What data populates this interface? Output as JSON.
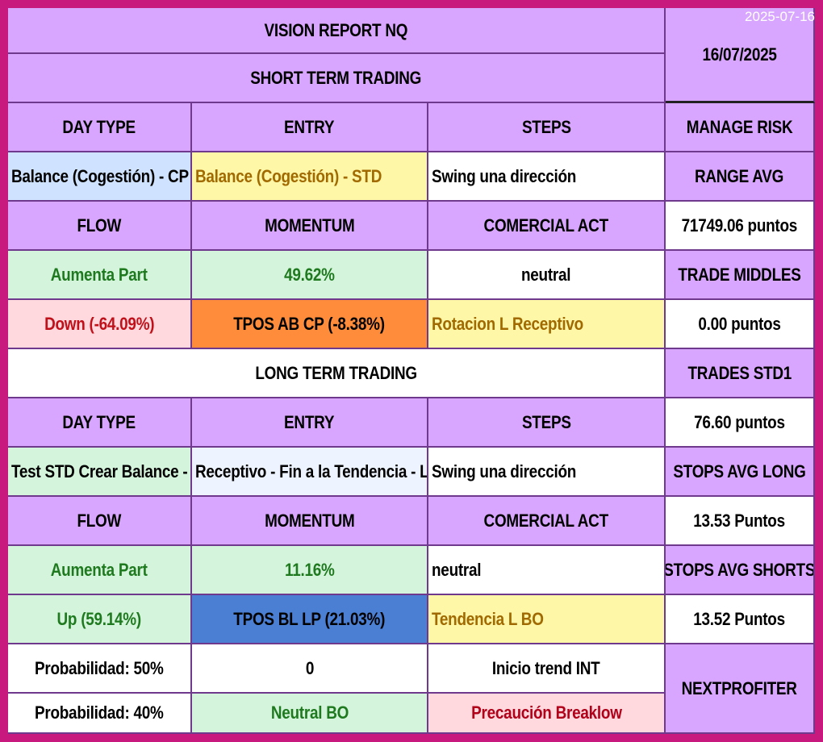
{
  "date_stamp": "2025-07-16",
  "header": {
    "title": "VISION REPORT NQ",
    "subtitle": "SHORT TERM TRADING",
    "date": "16/07/2025"
  },
  "short_term": {
    "headers": [
      "DAY TYPE",
      "ENTRY",
      "STEPS"
    ],
    "day_type": "Balance (Cogestión) - CP",
    "entry": "Balance (Cogestión) - STD",
    "steps": "Swing una dirección",
    "headers2": [
      "FLOW",
      "MOMENTUM",
      "COMERCIAL ACT"
    ],
    "flow": "Aumenta Part",
    "momentum": "49.62%",
    "comercial_act": "neutral",
    "flow_dir": "Down (-64.09%)",
    "tpos": "TPOS AB CP (-8.38%)",
    "rotacion": "Rotacion L Receptivo"
  },
  "long_term": {
    "title": "LONG TERM TRADING",
    "headers": [
      "DAY TYPE",
      "ENTRY",
      "STEPS"
    ],
    "day_type": "Test STD Crear Balance - LP",
    "entry": "Receptivo - Fin a la Tendencia - LP",
    "steps": "Swing una dirección",
    "headers2": [
      "FLOW",
      "MOMENTUM",
      "COMERCIAL ACT"
    ],
    "flow": "Aumenta Part",
    "momentum": "11.16%",
    "comercial_act": "neutral",
    "flow_dir": "Up (59.14%)",
    "tpos": "TPOS BL LP (21.03%)",
    "tendencia": "Tendencia L BO",
    "prob1": "Probabilidad: 50%",
    "val1": "0",
    "inicio": "Inicio trend INT",
    "prob2": "Probabilidad: 40%",
    "neutral_bo": "Neutral BO",
    "precaucion": "Precaución Breaklow"
  },
  "risk": {
    "manage_risk": "MANAGE RISK",
    "range_avg_label": "RANGE AVG",
    "range_avg": "71749.06 puntos",
    "trade_middles_label": "TRADE MIDDLES",
    "trade_middles": "0.00 puntos",
    "trades_std1_label": "TRADES  STD1",
    "trades_std1": "76.60 puntos",
    "stops_long_label": "STOPS AVG LONG",
    "stops_long": "13.53 Puntos",
    "stops_short_label": "STOPS AVG SHORTS",
    "stops_short": "13.52 Puntos",
    "footer": "NEXTPROFITER"
  }
}
